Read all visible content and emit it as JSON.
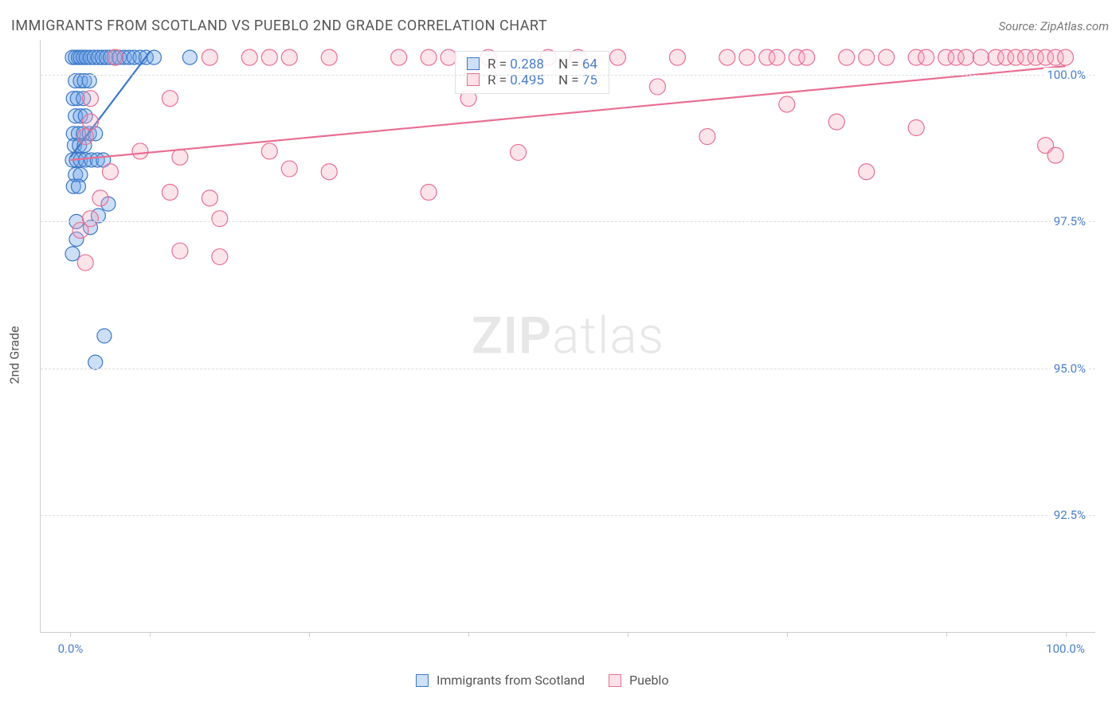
{
  "title": "IMMIGRANTS FROM SCOTLAND VS PUEBLO 2ND GRADE CORRELATION CHART",
  "source": "Source: ZipAtlas.com",
  "watermark_bold": "ZIP",
  "watermark_light": "atlas",
  "yaxis_title": "2nd Grade",
  "chart": {
    "type": "scatter",
    "plot_background": "#ffffff",
    "grid_color": "#dddddd",
    "axis_color": "#cccccc",
    "x_range": [
      -3,
      103
    ],
    "y_range": [
      90.5,
      100.6
    ],
    "yticks": [
      {
        "v": 100.0,
        "label": "100.0%"
      },
      {
        "v": 97.5,
        "label": "97.5%"
      },
      {
        "v": 95.0,
        "label": "95.0%"
      },
      {
        "v": 92.5,
        "label": "92.5%"
      }
    ],
    "xticks_major": [
      0,
      100
    ],
    "xticks_minor": [
      8,
      24,
      40,
      56,
      72,
      88
    ],
    "xtick_labels": [
      {
        "v": 0,
        "label": "0.0%"
      },
      {
        "v": 100,
        "label": "100.0%"
      }
    ],
    "series": [
      {
        "name": "Immigrants from Scotland",
        "fill": "#6da3e8",
        "stroke": "#3b77c6",
        "fill_opacity": 0.35,
        "r": 9,
        "R": 0.288,
        "N": 64,
        "trend": {
          "x1": 0,
          "y1": 98.6,
          "x2": 8,
          "y2": 100.4
        },
        "points": [
          [
            0.2,
            100.3
          ],
          [
            0.5,
            100.3
          ],
          [
            0.8,
            100.3
          ],
          [
            1.0,
            100.3
          ],
          [
            1.3,
            100.3
          ],
          [
            1.6,
            100.3
          ],
          [
            2.0,
            100.3
          ],
          [
            2.4,
            100.3
          ],
          [
            2.8,
            100.3
          ],
          [
            3.2,
            100.3
          ],
          [
            3.6,
            100.3
          ],
          [
            4.0,
            100.3
          ],
          [
            4.4,
            100.3
          ],
          [
            4.9,
            100.3
          ],
          [
            5.4,
            100.3
          ],
          [
            5.9,
            100.3
          ],
          [
            6.4,
            100.3
          ],
          [
            7.0,
            100.3
          ],
          [
            7.6,
            100.3
          ],
          [
            8.4,
            100.3
          ],
          [
            12.0,
            100.3
          ],
          [
            0.5,
            99.9
          ],
          [
            1.0,
            99.9
          ],
          [
            1.4,
            99.9
          ],
          [
            1.9,
            99.9
          ],
          [
            0.3,
            99.6
          ],
          [
            0.7,
            99.6
          ],
          [
            1.3,
            99.6
          ],
          [
            0.5,
            99.3
          ],
          [
            1.0,
            99.3
          ],
          [
            1.5,
            99.3
          ],
          [
            0.3,
            99.0
          ],
          [
            0.8,
            99.0
          ],
          [
            1.3,
            99.0
          ],
          [
            1.9,
            99.0
          ],
          [
            2.5,
            99.0
          ],
          [
            0.4,
            98.8
          ],
          [
            0.9,
            98.8
          ],
          [
            1.4,
            98.8
          ],
          [
            0.2,
            98.55
          ],
          [
            0.6,
            98.55
          ],
          [
            1.0,
            98.55
          ],
          [
            1.5,
            98.55
          ],
          [
            2.1,
            98.55
          ],
          [
            2.7,
            98.55
          ],
          [
            3.3,
            98.55
          ],
          [
            0.5,
            98.3
          ],
          [
            1.0,
            98.3
          ],
          [
            0.3,
            98.1
          ],
          [
            0.8,
            98.1
          ],
          [
            3.8,
            97.8
          ],
          [
            0.6,
            97.5
          ],
          [
            2.8,
            97.6
          ],
          [
            2.0,
            97.4
          ],
          [
            0.6,
            97.2
          ],
          [
            3.4,
            95.55
          ],
          [
            2.5,
            95.1
          ],
          [
            0.2,
            96.95
          ]
        ]
      },
      {
        "name": "Pueblo",
        "fill": "#f5a6bd",
        "stroke": "#e86e93",
        "fill_opacity": 0.3,
        "r": 10,
        "R": 0.495,
        "N": 75,
        "trend": {
          "x1": 0,
          "y1": 98.55,
          "x2": 100,
          "y2": 100.15
        },
        "points": [
          [
            4.5,
            100.3
          ],
          [
            14,
            100.3
          ],
          [
            18,
            100.3
          ],
          [
            20,
            100.3
          ],
          [
            22,
            100.3
          ],
          [
            26,
            100.3
          ],
          [
            33,
            100.3
          ],
          [
            36,
            100.3
          ],
          [
            38,
            100.3
          ],
          [
            42,
            100.3
          ],
          [
            48,
            100.3
          ],
          [
            51,
            100.3
          ],
          [
            55,
            100.3
          ],
          [
            61,
            100.3
          ],
          [
            66,
            100.3
          ],
          [
            68,
            100.3
          ],
          [
            70,
            100.3
          ],
          [
            71,
            100.3
          ],
          [
            73,
            100.3
          ],
          [
            74,
            100.3
          ],
          [
            78,
            100.3
          ],
          [
            80,
            100.3
          ],
          [
            82,
            100.3
          ],
          [
            85,
            100.3
          ],
          [
            86,
            100.3
          ],
          [
            88,
            100.3
          ],
          [
            89,
            100.3
          ],
          [
            90,
            100.3
          ],
          [
            91.5,
            100.3
          ],
          [
            93,
            100.3
          ],
          [
            94,
            100.3
          ],
          [
            95,
            100.3
          ],
          [
            96,
            100.3
          ],
          [
            97,
            100.3
          ],
          [
            98,
            100.3
          ],
          [
            99,
            100.3
          ],
          [
            100,
            100.3
          ],
          [
            2,
            99.6
          ],
          [
            10,
            99.6
          ],
          [
            40,
            99.6
          ],
          [
            2,
            99.2
          ],
          [
            77,
            99.2
          ],
          [
            1.5,
            98.95
          ],
          [
            22,
            98.4
          ],
          [
            64,
            98.95
          ],
          [
            98,
            98.8
          ],
          [
            99,
            98.63
          ],
          [
            7,
            98.7
          ],
          [
            20,
            98.7
          ],
          [
            45,
            98.68
          ],
          [
            59,
            99.8
          ],
          [
            80,
            98.35
          ],
          [
            4,
            98.35
          ],
          [
            26,
            98.35
          ],
          [
            3,
            97.9
          ],
          [
            36,
            98.0
          ],
          [
            14,
            97.9
          ],
          [
            10,
            98.0
          ],
          [
            11,
            98.6
          ],
          [
            15,
            97.55
          ],
          [
            2,
            97.55
          ],
          [
            1,
            97.35
          ],
          [
            11,
            97.0
          ],
          [
            15,
            96.9
          ],
          [
            1.5,
            96.8
          ],
          [
            72,
            99.5
          ],
          [
            85,
            99.1
          ]
        ]
      }
    ]
  },
  "stats_box": {
    "rows": [
      {
        "swatch_fill": "#6da3e8",
        "swatch_stroke": "#3b77c6",
        "R_label": "R =",
        "R": "0.288",
        "N_label": "N =",
        "N": "64"
      },
      {
        "swatch_fill": "#f5a6bd",
        "swatch_stroke": "#e86e93",
        "R_label": "R =",
        "R": "0.495",
        "N_label": "N =",
        "N": "75"
      }
    ]
  },
  "bottom_legend": [
    {
      "fill": "#6da3e8",
      "stroke": "#3b77c6",
      "label": "Immigrants from Scotland"
    },
    {
      "fill": "#f5a6bd",
      "stroke": "#e86e93",
      "label": "Pueblo"
    }
  ]
}
